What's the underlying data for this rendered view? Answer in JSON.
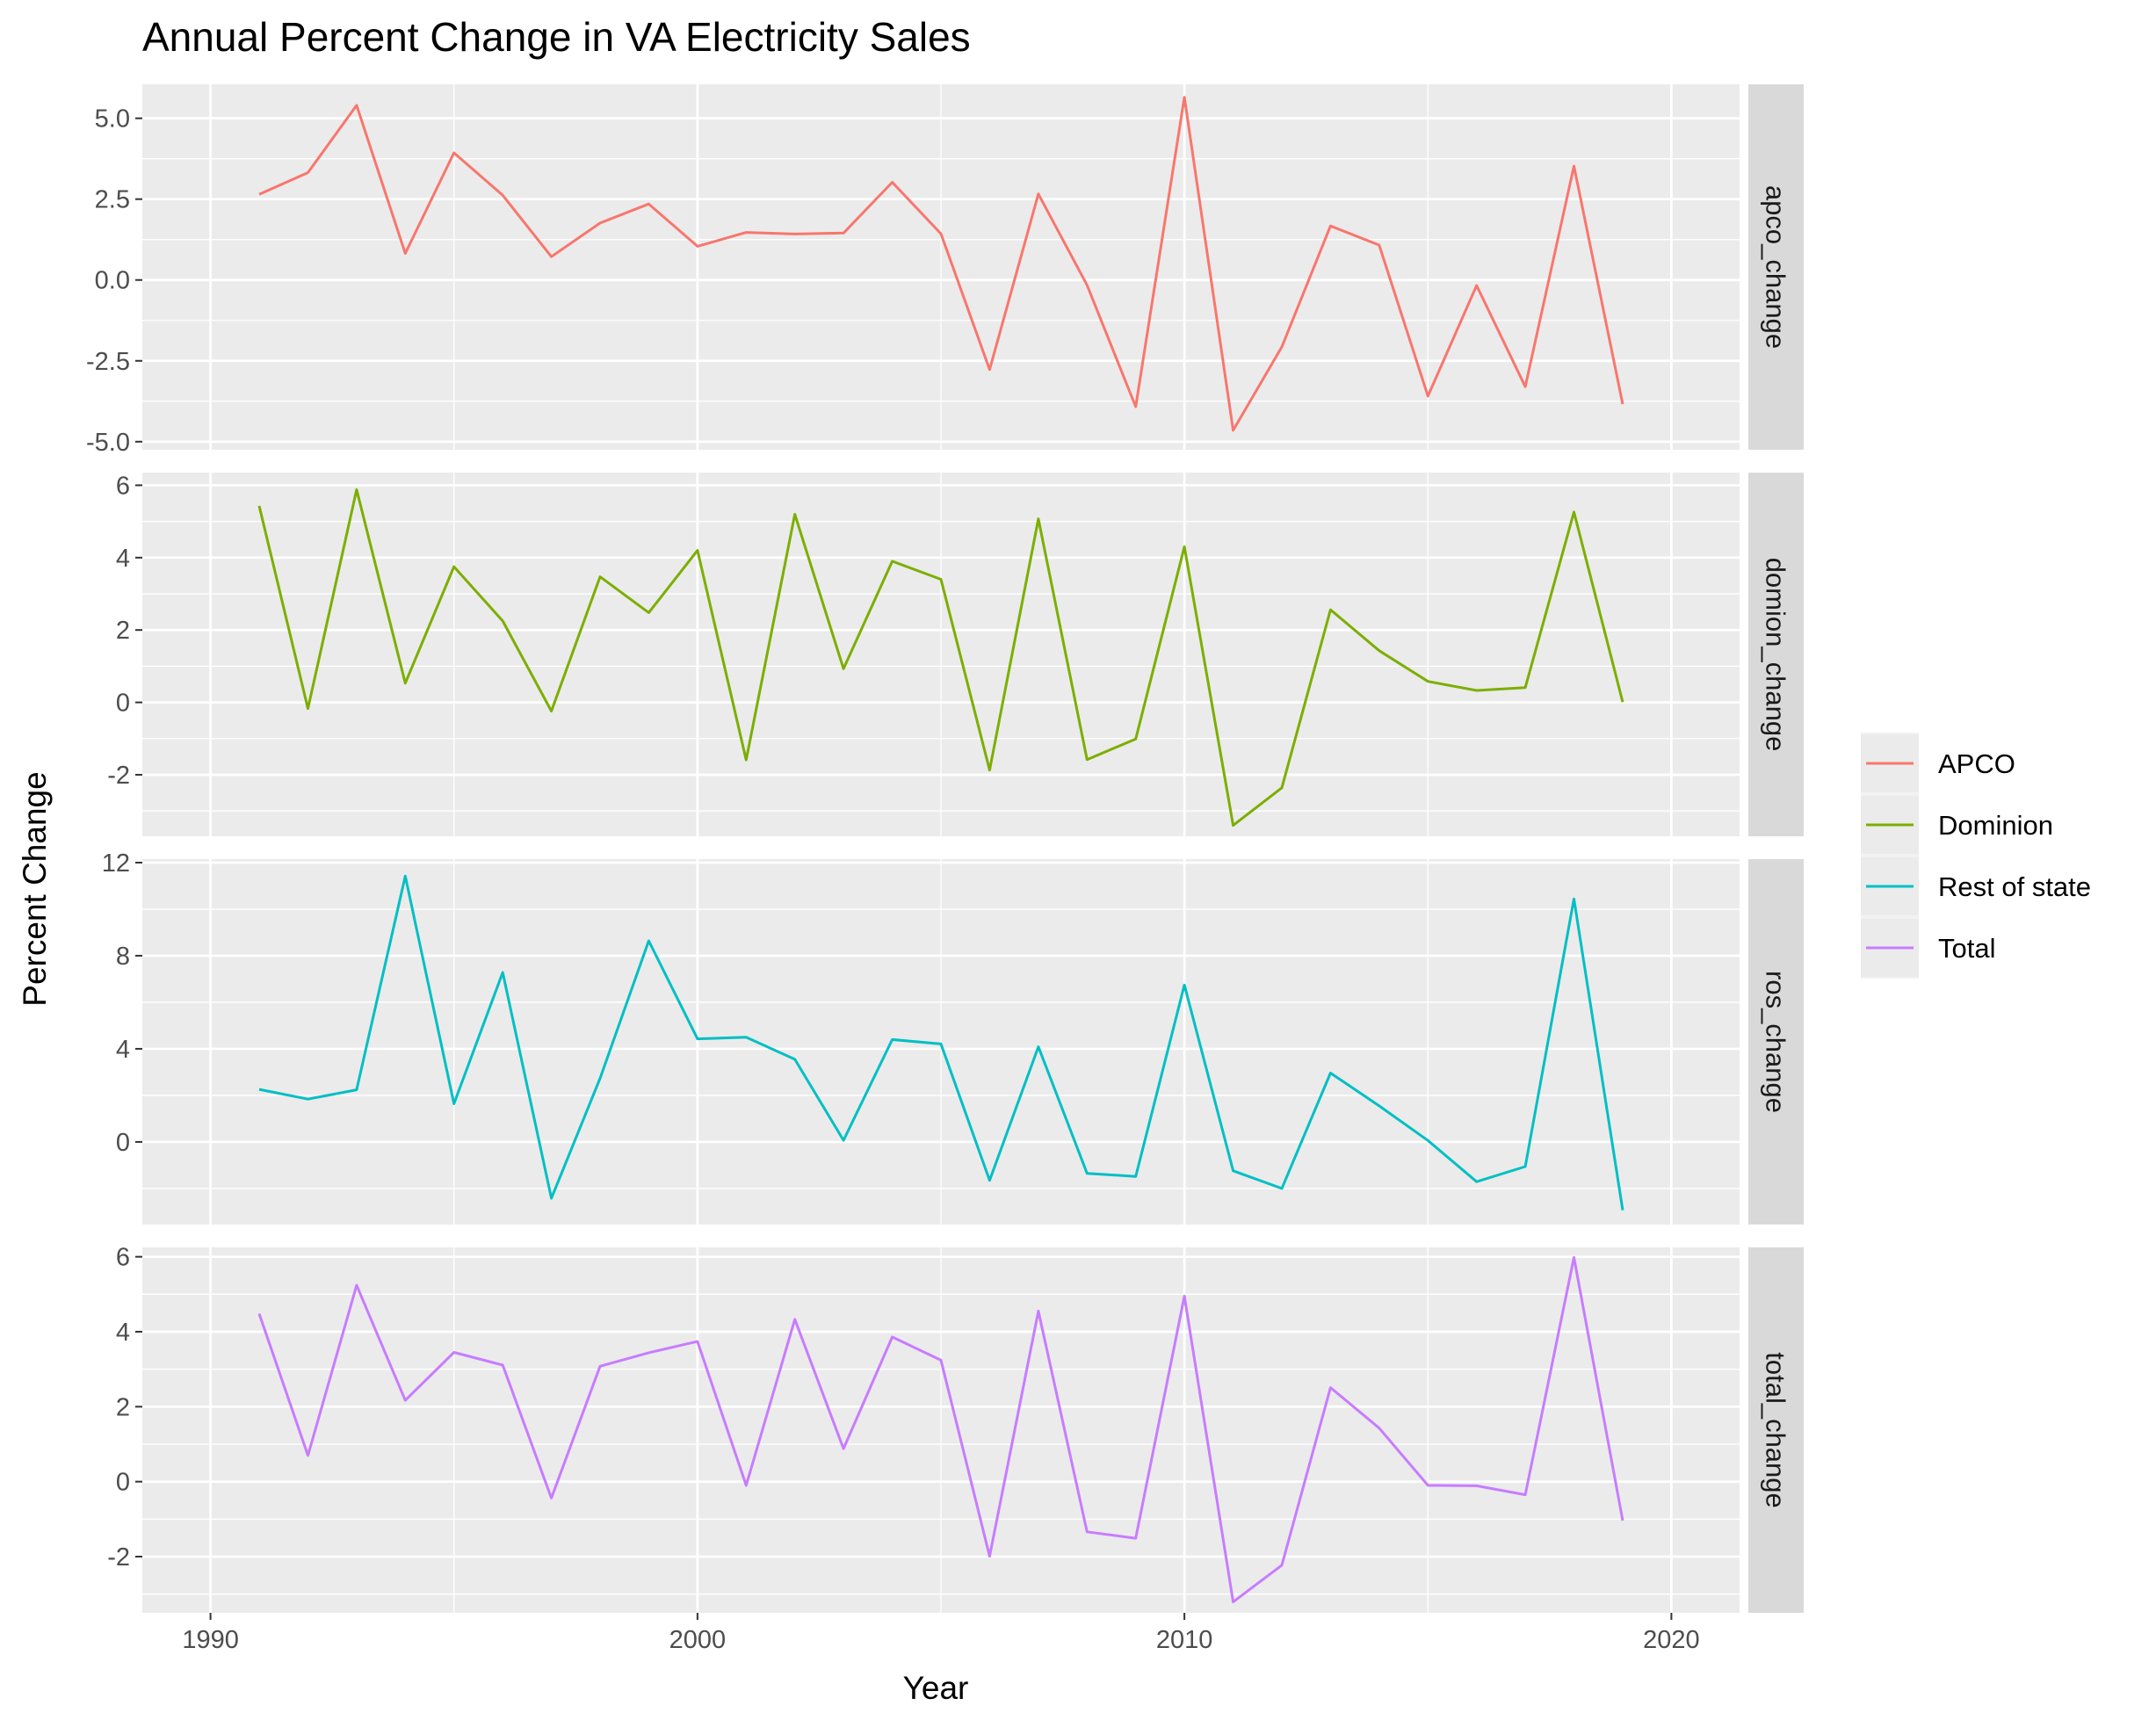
{
  "chart_data": {
    "type": "line",
    "title": "Annual Percent Change in VA Electricity Sales",
    "xlabel": "Year",
    "ylabel": "Percent Change",
    "xlim": [
      1988.6,
      2021.4
    ],
    "x_ticks": [
      1990,
      2000,
      2010,
      2020
    ],
    "x": [
      1991,
      1992,
      1993,
      1994,
      1995,
      1996,
      1997,
      1998,
      1999,
      2000,
      2001,
      2002,
      2003,
      2004,
      2005,
      2006,
      2007,
      2008,
      2009,
      2010,
      2011,
      2012,
      2013,
      2014,
      2015,
      2016,
      2017,
      2018,
      2019
    ],
    "grid": true,
    "legend_position": "right",
    "facets": [
      {
        "strip": "apco_change",
        "series": "APCO",
        "color": "#F8766D",
        "ylim": [
          -5.25,
          6.05
        ],
        "y_ticks": [
          -5,
          -2.5,
          0,
          2.5,
          5
        ],
        "y_tick_labels": [
          "-5.0",
          "-2.5",
          "0.0",
          "2.5",
          "5.0"
        ],
        "values": [
          2.65,
          3.32,
          5.4,
          0.82,
          3.93,
          2.62,
          0.72,
          1.76,
          2.35,
          1.04,
          1.47,
          1.42,
          1.45,
          3.02,
          1.43,
          -2.77,
          2.66,
          -0.16,
          -3.92,
          5.65,
          -4.65,
          -2.07,
          1.67,
          1.08,
          -3.59,
          -0.17,
          -3.3,
          3.52,
          -3.84
        ]
      },
      {
        "strip": "domion_change",
        "series": "Dominion",
        "color": "#7CAE00",
        "ylim": [
          -3.7,
          6.35
        ],
        "y_ticks": [
          -2,
          0,
          2,
          4,
          6
        ],
        "y_tick_labels": [
          "-2",
          "0",
          "2",
          "4",
          "6"
        ],
        "values": [
          5.43,
          -0.17,
          5.88,
          0.53,
          3.75,
          2.25,
          -0.24,
          3.47,
          2.48,
          4.2,
          -1.59,
          5.2,
          0.93,
          3.9,
          3.4,
          -1.87,
          5.07,
          -1.58,
          -1.01,
          4.3,
          -3.4,
          -2.36,
          2.56,
          1.43,
          0.58,
          0.33,
          0.41,
          5.26,
          0.01
        ]
      },
      {
        "strip": "ros_change",
        "series": "Rest of state",
        "color": "#00BFC4",
        "ylim": [
          -3.55,
          12.15
        ],
        "y_ticks": [
          0,
          4,
          8,
          12
        ],
        "y_tick_labels": [
          "0",
          "4",
          "8",
          "12"
        ],
        "values": [
          2.26,
          1.84,
          2.24,
          11.42,
          1.64,
          7.28,
          -2.42,
          2.73,
          8.64,
          4.43,
          4.5,
          3.55,
          0.07,
          4.4,
          4.21,
          -1.65,
          4.09,
          -1.35,
          -1.48,
          6.74,
          -1.24,
          -2.0,
          2.96,
          1.55,
          0.06,
          -1.71,
          -1.06,
          10.44,
          -2.93
        ]
      },
      {
        "strip": "total_change",
        "series": "Total",
        "color": "#C77CFF",
        "ylim": [
          -3.5,
          6.25
        ],
        "y_ticks": [
          -2,
          0,
          2,
          4,
          6
        ],
        "y_tick_labels": [
          "-2",
          "0",
          "2",
          "4",
          "6"
        ],
        "values": [
          4.48,
          0.7,
          5.24,
          2.17,
          3.45,
          3.11,
          -0.44,
          3.08,
          3.44,
          3.74,
          -0.1,
          4.33,
          0.88,
          3.86,
          3.24,
          -1.99,
          4.55,
          -1.34,
          -1.51,
          4.95,
          -3.21,
          -2.23,
          2.51,
          1.43,
          -0.1,
          -0.11,
          -0.35,
          5.98,
          -1.04
        ]
      }
    ],
    "legend": [
      "APCO",
      "Dominion",
      "Rest of state",
      "Total"
    ]
  }
}
